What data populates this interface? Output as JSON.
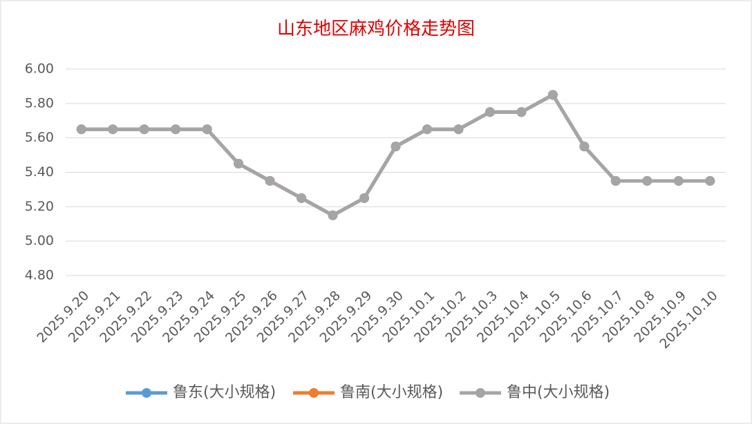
{
  "chart_data": {
    "type": "line",
    "title": "山东地区麻鸡价格走势图",
    "categories": [
      "2025.9.20",
      "2025.9.21",
      "2025.9.22",
      "2025.9.23",
      "2025.9.24",
      "2025.9.25",
      "2025.9.26",
      "2025.9.27",
      "2025.9.28",
      "2025.9.29",
      "2025.9.30",
      "2025.10.1",
      "2025.10.2",
      "2025.10.3",
      "2025.10.4",
      "2025.10.5",
      "2025.10.6",
      "2025.10.7",
      "2025.10.8",
      "2025.10.9",
      "2025.10.10"
    ],
    "series": [
      {
        "name": "鲁东(大小规格)",
        "color": "#5b9bd5",
        "values": [
          5.65,
          5.65,
          5.65,
          5.65,
          5.65,
          5.45,
          5.35,
          5.25,
          5.15,
          5.25,
          5.55,
          5.65,
          5.65,
          5.75,
          5.75,
          5.85,
          5.55,
          5.35,
          5.35,
          5.35,
          5.35
        ]
      },
      {
        "name": "鲁南(大小规格)",
        "color": "#ed7d31",
        "values": [
          5.65,
          5.65,
          5.65,
          5.65,
          5.65,
          5.45,
          5.35,
          5.25,
          5.15,
          5.25,
          5.55,
          5.65,
          5.65,
          5.75,
          5.75,
          5.85,
          5.55,
          5.35,
          5.35,
          5.35,
          5.35
        ]
      },
      {
        "name": "鲁中(大小规格)",
        "color": "#a5a5a5",
        "values": [
          5.65,
          5.65,
          5.65,
          5.65,
          5.65,
          5.45,
          5.35,
          5.25,
          5.15,
          5.25,
          5.55,
          5.65,
          5.65,
          5.75,
          5.75,
          5.85,
          5.55,
          5.35,
          5.35,
          5.35,
          5.35
        ]
      }
    ],
    "ylim": [
      4.8,
      6.0
    ],
    "yticks": [
      {
        "value": 4.8,
        "label": "4.80"
      },
      {
        "value": 5.0,
        "label": "5.00"
      },
      {
        "value": 5.2,
        "label": "5.20"
      },
      {
        "value": 5.4,
        "label": "5.40"
      },
      {
        "value": 5.6,
        "label": "5.60"
      },
      {
        "value": 5.8,
        "label": "5.80"
      },
      {
        "value": 6.0,
        "label": "6.00"
      }
    ],
    "grid": true,
    "legend": "bottom"
  }
}
